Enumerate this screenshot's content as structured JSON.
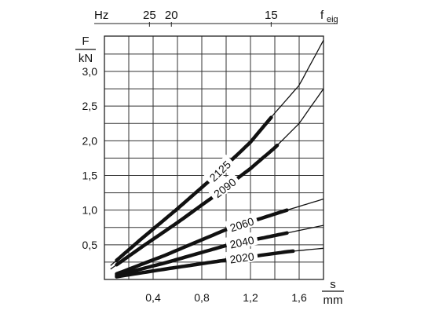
{
  "chart_data": {
    "type": "line",
    "x_axis": {
      "unit_top": "s",
      "unit_bottom": "mm",
      "range": [
        0,
        1.8
      ],
      "tick_labels": [
        "0,4",
        "0,8",
        "1,2",
        "1,6"
      ],
      "tick_values": [
        0.4,
        0.8,
        1.2,
        1.6
      ]
    },
    "y_axis": {
      "unit_top": "F",
      "unit_bottom": "kN",
      "range": [
        0,
        3.0
      ],
      "tick_labels": [
        "0,5",
        "1,0",
        "1,5",
        "2,0",
        "2,5",
        "3,0"
      ],
      "tick_values": [
        0.5,
        1.0,
        1.5,
        2.0,
        2.5,
        3.0
      ]
    },
    "top_axis": {
      "unit_left": "Hz",
      "unit_right": "f",
      "unit_right_sub": "eig",
      "tick_labels": [
        "25",
        "20",
        "15"
      ],
      "tick_x_positions": [
        0.37,
        0.55,
        1.37
      ]
    },
    "grid": true,
    "series": [
      {
        "name": "2125",
        "x": [
          0.05,
          0.3,
          0.6,
          0.9,
          1.2,
          1.4,
          1.6,
          1.8
        ],
        "y": [
          0.2,
          0.58,
          1.02,
          1.48,
          1.98,
          2.4,
          2.8,
          3.45
        ],
        "thick_range": [
          0.1,
          1.37
        ],
        "label_at": 0.95
      },
      {
        "name": "2090",
        "x": [
          0.05,
          0.3,
          0.6,
          0.9,
          1.2,
          1.4,
          1.6,
          1.8
        ],
        "y": [
          0.15,
          0.46,
          0.82,
          1.2,
          1.6,
          1.9,
          2.25,
          2.75
        ],
        "thick_range": [
          0.1,
          1.42
        ],
        "label_at": 0.99
      },
      {
        "name": "2060",
        "x": [
          0.1,
          0.5,
          1.0,
          1.5,
          1.8
        ],
        "y": [
          0.08,
          0.35,
          0.72,
          1.0,
          1.16
        ],
        "thick_range": [
          0.1,
          1.5
        ],
        "label_at": 1.13
      },
      {
        "name": "2040",
        "x": [
          0.1,
          0.5,
          1.0,
          1.5,
          1.8
        ],
        "y": [
          0.06,
          0.24,
          0.49,
          0.67,
          0.78
        ],
        "thick_range": [
          0.1,
          1.5
        ],
        "label_at": 1.13
      },
      {
        "name": "2020",
        "x": [
          0.1,
          0.5,
          1.0,
          1.5,
          1.8
        ],
        "y": [
          0.04,
          0.15,
          0.28,
          0.4,
          0.45
        ],
        "thick_range": [
          0.1,
          1.55
        ],
        "label_at": 1.13
      }
    ]
  }
}
